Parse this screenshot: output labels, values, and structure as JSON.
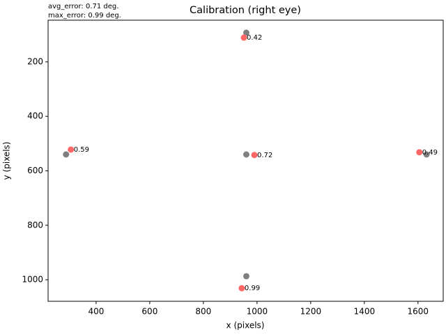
{
  "chart_data": {
    "type": "scatter",
    "title": "Calibration (right eye)",
    "annotations": [
      "avg_error: 0.71 deg.",
      "max_error: 0.99 deg."
    ],
    "x_label": "x (pixels)",
    "y_label": "y (pixels)",
    "xlim": [
      221,
      1694
    ],
    "ylim": [
      1079,
      47
    ],
    "xticks": [
      400,
      600,
      800,
      1000,
      1200,
      1400,
      1600
    ],
    "yticks": [
      200,
      400,
      600,
      800,
      1000
    ],
    "series": [
      {
        "color": "#7f7f7f",
        "x": [
          960,
          288,
          960,
          1632,
          960
        ],
        "values": [
          93,
          540,
          540,
          540,
          987
        ]
      },
      {
        "color": "#ff6666",
        "x": [
          951,
          306,
          990,
          1605,
          943
        ],
        "values": [
          111,
          522,
          542,
          532,
          1031
        ],
        "point_labels": [
          0.42,
          0.59,
          0.72,
          0.49,
          0.99
        ]
      }
    ]
  }
}
